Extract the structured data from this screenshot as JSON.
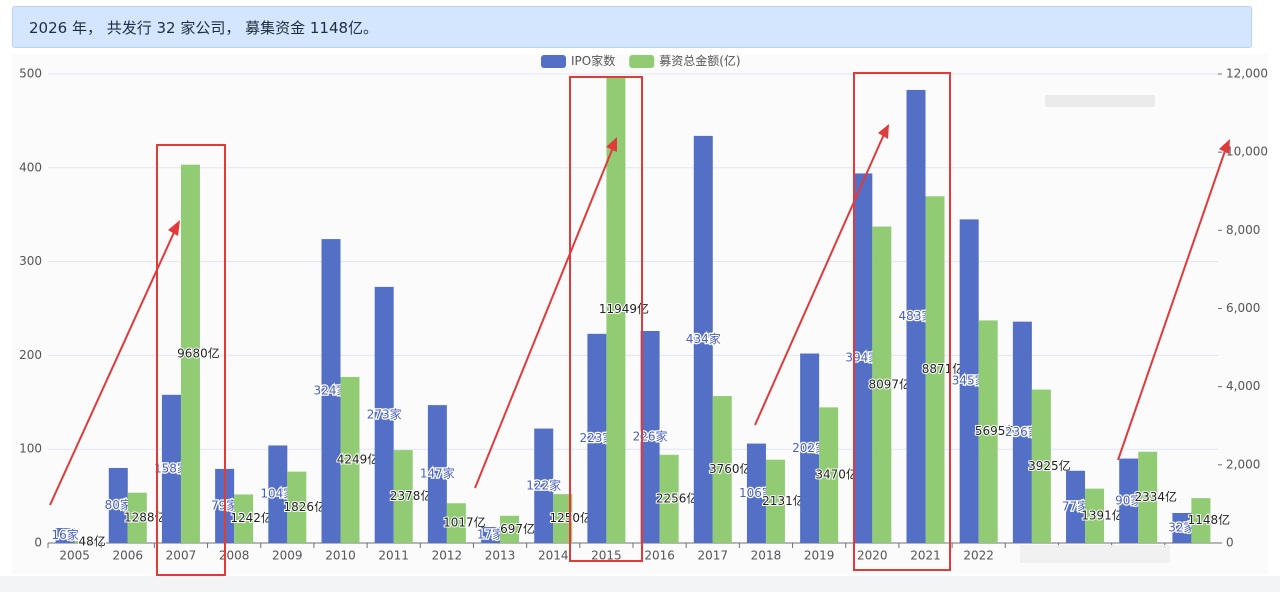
{
  "banner": "2026 年， 共发行 32 家公司， 募集资金 1148亿。",
  "chart_data": {
    "type": "bar",
    "categories": [
      "2005",
      "2006",
      "2007",
      "2008",
      "2009",
      "2010",
      "2011",
      "2012",
      "2013",
      "2014",
      "2015",
      "2016",
      "2017",
      "2018",
      "2019",
      "2020",
      "2021",
      "2022",
      null,
      null,
      null,
      null
    ],
    "series": [
      {
        "name": "IPO家数",
        "color": "#5470c6",
        "axis": "y",
        "values": [
          16,
          80,
          158,
          79,
          104,
          324,
          273,
          147,
          17,
          122,
          223,
          226,
          434,
          106,
          202,
          394,
          483,
          345,
          236,
          77,
          90,
          32
        ],
        "value_labels": [
          "16家",
          "80家",
          "158家",
          "79家",
          "104家",
          "324家",
          "273家",
          "147家",
          "17家",
          "122家",
          "223家",
          "226家",
          "434家",
          "106家",
          "202家",
          "394家",
          "483家",
          "345家",
          "236家",
          "77家",
          "90家",
          "32家"
        ]
      },
      {
        "name": "募资总金额(亿)",
        "color": "#91cc75",
        "axis": "y2",
        "values": [
          48,
          1288,
          9680,
          1242,
          1826,
          4249,
          2378,
          1017,
          697,
          1250,
          11949,
          2256,
          3760,
          2131,
          3470,
          8097,
          8871,
          5695,
          3925,
          1391,
          2334,
          1148
        ],
        "value_labels": [
          "48亿",
          "1288亿",
          "9680亿",
          "1242亿",
          "1826亿",
          "4249亿",
          "2378亿",
          "1017亿",
          "697亿",
          "1250亿",
          "11949亿",
          "2256亿",
          "3760亿",
          "2131亿",
          "3470亿",
          "8097亿",
          "8871亿",
          "5695亿",
          "3925亿",
          "1391亿",
          "2334亿",
          "1148亿"
        ]
      }
    ],
    "ylim": [
      0,
      500
    ],
    "yticks": [
      0,
      100,
      200,
      300,
      400,
      500
    ],
    "y2lim": [
      0,
      12000
    ],
    "y2ticks": [
      0,
      {
        "value": 2000,
        "label": "2,000"
      },
      {
        "value": 4000,
        "label": "4,000"
      },
      {
        "value": 6000,
        "label": "6,000"
      },
      {
        "value": 8000,
        "label": "8,000"
      },
      {
        "value": 10000,
        "label": "10,000"
      },
      {
        "value": 12000,
        "label": "12,000"
      }
    ],
    "grid": true,
    "legend": "top"
  }
}
